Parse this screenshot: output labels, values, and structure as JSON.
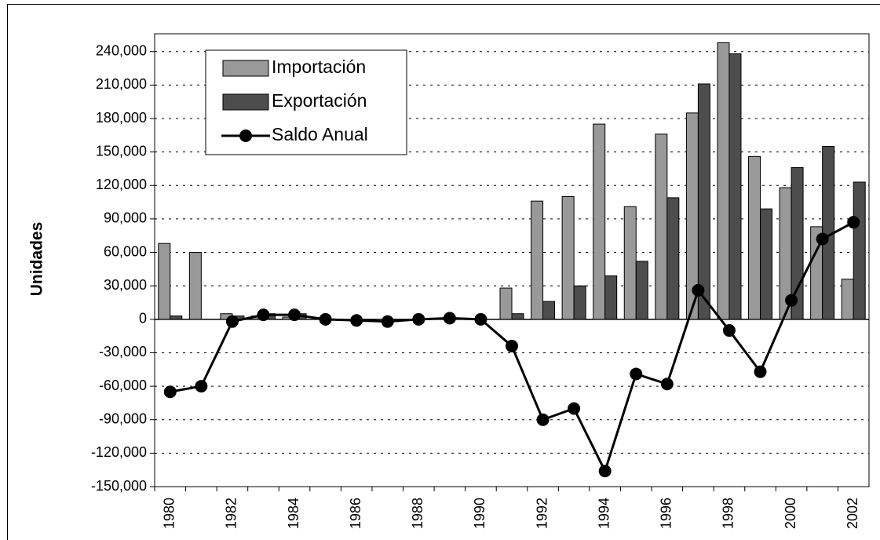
{
  "chart_data": {
    "type": "bar-line",
    "y_label": "Unidades",
    "categories": [
      "1980",
      null,
      "1982",
      null,
      "1984",
      null,
      "1986",
      null,
      "1988",
      null,
      "1990",
      null,
      "1992",
      null,
      "1994",
      null,
      "1996",
      null,
      "1998",
      null,
      "2000",
      null,
      "2002"
    ],
    "series": [
      {
        "name": "Importación",
        "color": "#999999",
        "kind": "bar",
        "values": [
          68000,
          60000,
          5000,
          3000,
          2000,
          0,
          0,
          0,
          0,
          0,
          0,
          28000,
          106000,
          110000,
          175000,
          101000,
          166000,
          185000,
          248000,
          146000,
          118000,
          83000,
          36000
        ]
      },
      {
        "name": "Exportación",
        "color": "#4d4d4d",
        "kind": "bar",
        "values": [
          3000,
          0,
          3000,
          5000,
          5000,
          0,
          0,
          0,
          0,
          0,
          0,
          5000,
          16000,
          30000,
          39000,
          52000,
          109000,
          211000,
          238000,
          99000,
          136000,
          155000,
          123000
        ]
      },
      {
        "name": "Saldo Anual",
        "color": "#000000",
        "kind": "line",
        "values": [
          -65000,
          -60000,
          -2000,
          4000,
          4000,
          0,
          -1000,
          -2000,
          0,
          1000,
          0,
          -24000,
          -90000,
          -80000,
          -136000,
          -49000,
          -58000,
          26000,
          -10000,
          -47000,
          17000,
          72000,
          87000
        ]
      }
    ],
    "ylim": [
      -150000,
      256000
    ],
    "yticks": [
      {
        "value": -150000,
        "label": "-150,000"
      },
      {
        "value": -120000,
        "label": "-120,000"
      },
      {
        "value": -90000,
        "label": "-90,000"
      },
      {
        "value": -60000,
        "label": "-60,000"
      },
      {
        "value": -30000,
        "label": "-30,000"
      },
      0,
      {
        "value": 30000,
        "label": "30,000"
      },
      {
        "value": 60000,
        "label": "60,000"
      },
      {
        "value": 90000,
        "label": "90,000"
      },
      {
        "value": 120000,
        "label": "120,000"
      },
      {
        "value": 150000,
        "label": "150,000"
      },
      {
        "value": 180000,
        "label": "180,000"
      },
      {
        "value": 210000,
        "label": "210,000"
      },
      {
        "value": 240000,
        "label": "240,000"
      }
    ],
    "grid": true,
    "legend": "upper-left"
  }
}
